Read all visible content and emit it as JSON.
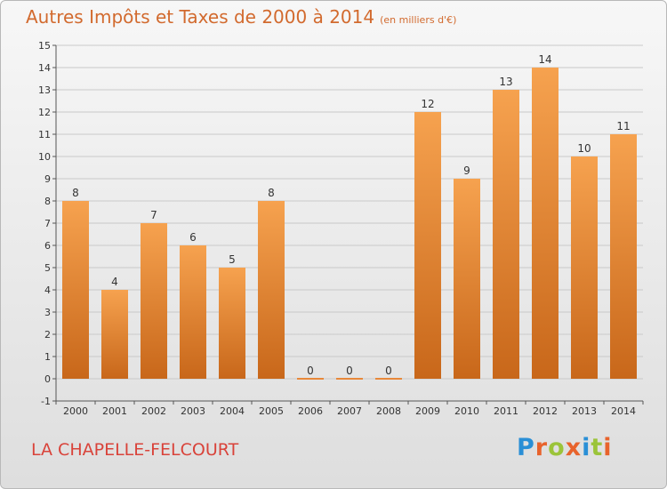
{
  "header": {
    "title": "Autres Impôts et Taxes de 2000 à 2014",
    "subtitle": "(en milliers d'€)"
  },
  "footer": {
    "commune": "LA CHAPELLE-FELCOURT",
    "logo_text": "Proxiti",
    "logo_colors": [
      "#2a8fd6",
      "#e8632c",
      "#9bc43a",
      "#e8632c",
      "#2a8fd6",
      "#9bc43a",
      "#e8632c"
    ]
  },
  "colors": {
    "bar_top": "#f6a24f",
    "bar_bottom": "#c8671a",
    "zero_bar": "#e8883a",
    "title": "#d26a2e",
    "commune": "#d9433a"
  },
  "chart_data": {
    "type": "bar",
    "categories": [
      "2000",
      "2001",
      "2002",
      "2003",
      "2004",
      "2005",
      "2006",
      "2007",
      "2008",
      "2009",
      "2010",
      "2011",
      "2012",
      "2013",
      "2014"
    ],
    "values": [
      8,
      4,
      7,
      6,
      5,
      8,
      0,
      0,
      0,
      12,
      9,
      13,
      14,
      10,
      11
    ],
    "data_labels": [
      "8",
      "4",
      "7",
      "6",
      "5",
      "8",
      "0",
      "0",
      "0",
      "12",
      "9",
      "13",
      "14",
      "10",
      "11"
    ],
    "ylim": [
      -1,
      15
    ],
    "yticks": [
      "-1",
      "0",
      "1",
      "2",
      "3",
      "4",
      "5",
      "6",
      "7",
      "8",
      "9",
      "10",
      "11",
      "12",
      "13",
      "14",
      "15"
    ],
    "grid": "horizontal",
    "legend": "none"
  }
}
